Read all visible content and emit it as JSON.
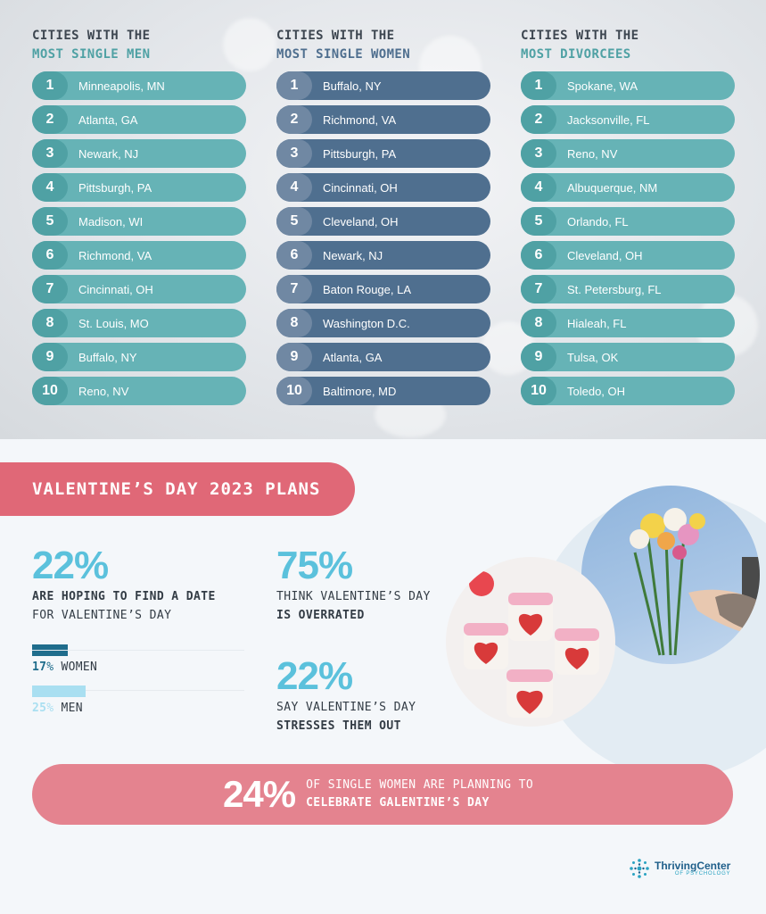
{
  "columns": [
    {
      "heading_line1": "CITIES WITH THE",
      "heading_line2": "MOST SINGLE MEN",
      "items": [
        {
          "rank": "1",
          "city": "Minneapolis, MN"
        },
        {
          "rank": "2",
          "city": "Atlanta, GA"
        },
        {
          "rank": "3",
          "city": "Newark, NJ"
        },
        {
          "rank": "4",
          "city": "Pittsburgh, PA"
        },
        {
          "rank": "5",
          "city": "Madison, WI"
        },
        {
          "rank": "6",
          "city": "Richmond, VA"
        },
        {
          "rank": "7",
          "city": "Cincinnati, OH"
        },
        {
          "rank": "8",
          "city": "St. Louis, MO"
        },
        {
          "rank": "9",
          "city": "Buffalo, NY"
        },
        {
          "rank": "10",
          "city": "Reno, NV"
        }
      ]
    },
    {
      "heading_line1": "CITIES WITH THE",
      "heading_line2": "MOST SINGLE WOMEN",
      "items": [
        {
          "rank": "1",
          "city": "Buffalo, NY"
        },
        {
          "rank": "2",
          "city": "Richmond, VA"
        },
        {
          "rank": "3",
          "city": "Pittsburgh, PA"
        },
        {
          "rank": "4",
          "city": "Cincinnati, OH"
        },
        {
          "rank": "5",
          "city": "Cleveland, OH"
        },
        {
          "rank": "6",
          "city": "Newark, NJ"
        },
        {
          "rank": "7",
          "city": "Baton Rouge, LA"
        },
        {
          "rank": "8",
          "city": "Washington D.C."
        },
        {
          "rank": "9",
          "city": "Atlanta, GA"
        },
        {
          "rank": "10",
          "city": "Baltimore, MD"
        }
      ]
    },
    {
      "heading_line1": "CITIES WITH THE",
      "heading_line2": "MOST DIVORCEES",
      "items": [
        {
          "rank": "1",
          "city": "Spokane, WA"
        },
        {
          "rank": "2",
          "city": "Jacksonville, FL"
        },
        {
          "rank": "3",
          "city": "Reno, NV"
        },
        {
          "rank": "4",
          "city": "Albuquerque, NM"
        },
        {
          "rank": "5",
          "city": "Orlando, FL"
        },
        {
          "rank": "6",
          "city": "Cleveland, OH"
        },
        {
          "rank": "7",
          "city": "St. Petersburg, FL"
        },
        {
          "rank": "8",
          "city": "Hialeah, FL"
        },
        {
          "rank": "9",
          "city": "Tulsa, OK"
        },
        {
          "rank": "10",
          "city": "Toledo, OH"
        }
      ]
    }
  ],
  "banner": "VALENTINE’S DAY 2023 PLANS",
  "stats": {
    "date": {
      "pct": "22%",
      "line1": "ARE HOPING TO FIND A DATE",
      "line2": "FOR VALENTINE’S DAY"
    },
    "overrated": {
      "pct": "75%",
      "line1": "THINK VALENTINE’S DAY",
      "line2": "IS OVERRATED"
    },
    "stress": {
      "pct": "22%",
      "line1": "SAY VALENTINE’S DAY",
      "line2": "STRESSES THEM OUT"
    }
  },
  "gender_bars": [
    {
      "value": "17",
      "unit": "%",
      "label": "WOMEN",
      "fraction": 0.17,
      "color": "#1f6d8c"
    },
    {
      "value": "25",
      "unit": "%",
      "label": "MEN",
      "fraction": 0.25,
      "color": "#a9dff1"
    }
  ],
  "galentine": {
    "pct": "24%",
    "line1": "OF SINGLE WOMEN ARE PLANNING TO",
    "line2": "CELEBRATE GALENTINE’S DAY"
  },
  "logo": {
    "name": "ThrivingCenter",
    "sub": "OF PSYCHOLOGY"
  },
  "colors": {
    "teal": "#66b3b6",
    "navy": "#4f6f8f",
    "coral": "#e06877",
    "pink_pill": "#e4838f",
    "sky": "#5bc1dc"
  }
}
